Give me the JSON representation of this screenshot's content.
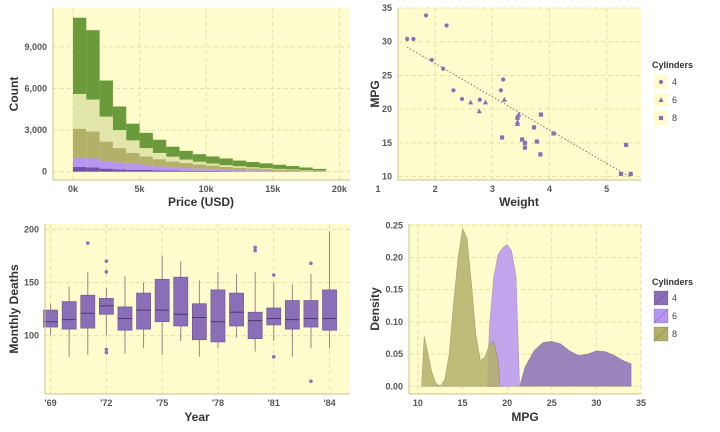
{
  "colors": {
    "panel_bg": "#fefccd",
    "grid": "#e6dfa6",
    "axis": "#c8c38a",
    "purple": "#8a6fb8",
    "purple_edge": "#6a5394",
    "green_dark": "#6a9a3a",
    "green_light": "#e3e6ab",
    "olive": "#b3b06a",
    "violet": "#b795f2",
    "indigo": "#7050a8"
  },
  "chart_data": [
    {
      "type": "histogram",
      "xlabel": "Price (USD)",
      "ylabel": "Count",
      "xlim": [
        -1500,
        20800
      ],
      "ylim": [
        -600,
        11800
      ],
      "xticks": [
        0,
        5000,
        10000,
        15000,
        20000
      ],
      "xtick_labels": [
        "0k",
        "5k",
        "10k",
        "15k",
        "20k"
      ],
      "yticks": [
        0,
        3000,
        6000,
        9000
      ],
      "ytick_labels": [
        "0",
        "3,000",
        "6,000",
        "9,000"
      ],
      "bin_width": 1000,
      "bin_starts": [
        0,
        1000,
        2000,
        3000,
        4000,
        5000,
        6000,
        7000,
        8000,
        9000,
        10000,
        11000,
        12000,
        13000,
        14000,
        15000,
        16000,
        17000,
        18000
      ],
      "series": [
        {
          "name": "layer1",
          "color": "#7050a8",
          "values": [
            350,
            300,
            220,
            170,
            140,
            120,
            100,
            80,
            70,
            60,
            50,
            40,
            30,
            20,
            20,
            10,
            10,
            5,
            5
          ]
        },
        {
          "name": "layer2",
          "color": "#b795f2",
          "values": [
            650,
            650,
            550,
            480,
            420,
            330,
            280,
            230,
            190,
            160,
            130,
            110,
            90,
            80,
            60,
            50,
            40,
            25,
            15
          ]
        },
        {
          "name": "layer3",
          "color": "#b3b06a",
          "values": [
            2100,
            1950,
            1400,
            1050,
            800,
            650,
            520,
            420,
            360,
            300,
            260,
            200,
            170,
            140,
            110,
            90,
            70,
            50,
            30
          ]
        },
        {
          "name": "layer4",
          "color": "#e3e6ab",
          "values": [
            2500,
            2300,
            1800,
            1300,
            900,
            600,
            450,
            350,
            250,
            200,
            150,
            120,
            100,
            80,
            60,
            50,
            40,
            30,
            20
          ]
        },
        {
          "name": "layer5",
          "color": "#6a9a3a",
          "values": [
            5500,
            5000,
            2600,
            1700,
            1200,
            1100,
            950,
            720,
            630,
            540,
            510,
            480,
            410,
            380,
            350,
            300,
            250,
            190,
            130
          ]
        }
      ]
    },
    {
      "type": "scatter",
      "xlabel": "Weight",
      "ylabel": "MPG",
      "xlim": [
        1.35,
        5.6
      ],
      "ylim": [
        9.5,
        35
      ],
      "xticks": [
        1,
        2,
        3,
        4,
        5
      ],
      "xtick_labels": [
        "1",
        "2",
        "3",
        "4",
        "5"
      ],
      "yticks": [
        10,
        15,
        20,
        25,
        30,
        35
      ],
      "ytick_labels": [
        "10",
        "15",
        "20",
        "25",
        "30",
        "35"
      ],
      "legend_title": "Cylinders",
      "legend_labels": [
        "4",
        "6",
        "8"
      ],
      "points": [
        {
          "x": 1.51,
          "y": 30.4,
          "cyl": 4
        },
        {
          "x": 1.62,
          "y": 30.4,
          "cyl": 4
        },
        {
          "x": 1.84,
          "y": 33.9,
          "cyl": 4
        },
        {
          "x": 1.94,
          "y": 27.3,
          "cyl": 4
        },
        {
          "x": 2.14,
          "y": 26.0,
          "cyl": 4
        },
        {
          "x": 2.2,
          "y": 32.4,
          "cyl": 4
        },
        {
          "x": 2.32,
          "y": 22.8,
          "cyl": 4
        },
        {
          "x": 2.47,
          "y": 21.5,
          "cyl": 4
        },
        {
          "x": 3.15,
          "y": 22.8,
          "cyl": 4
        },
        {
          "x": 3.19,
          "y": 24.4,
          "cyl": 4
        },
        {
          "x": 2.78,
          "y": 21.4,
          "cyl": 4
        },
        {
          "x": 2.62,
          "y": 21.0,
          "cyl": 6
        },
        {
          "x": 2.77,
          "y": 19.7,
          "cyl": 6
        },
        {
          "x": 2.88,
          "y": 21.0,
          "cyl": 6
        },
        {
          "x": 3.21,
          "y": 21.4,
          "cyl": 6
        },
        {
          "x": 3.44,
          "y": 17.8,
          "cyl": 6
        },
        {
          "x": 3.44,
          "y": 18.1,
          "cyl": 6
        },
        {
          "x": 3.46,
          "y": 19.2,
          "cyl": 6
        },
        {
          "x": 3.17,
          "y": 15.8,
          "cyl": 8
        },
        {
          "x": 3.44,
          "y": 18.7,
          "cyl": 8
        },
        {
          "x": 3.52,
          "y": 15.5,
          "cyl": 8
        },
        {
          "x": 3.57,
          "y": 14.3,
          "cyl": 8
        },
        {
          "x": 3.57,
          "y": 15.0,
          "cyl": 8
        },
        {
          "x": 3.73,
          "y": 17.3,
          "cyl": 8
        },
        {
          "x": 3.78,
          "y": 15.2,
          "cyl": 8
        },
        {
          "x": 3.84,
          "y": 13.3,
          "cyl": 8
        },
        {
          "x": 3.85,
          "y": 19.2,
          "cyl": 8
        },
        {
          "x": 4.07,
          "y": 16.4,
          "cyl": 8
        },
        {
          "x": 5.25,
          "y": 10.4,
          "cyl": 8
        },
        {
          "x": 5.34,
          "y": 14.7,
          "cyl": 8
        },
        {
          "x": 5.42,
          "y": 10.4,
          "cyl": 8
        }
      ],
      "trend_line": {
        "x": [
          1.51,
          5.42
        ],
        "y": [
          29.2,
          9.9
        ]
      }
    },
    {
      "type": "box",
      "xlabel": "Year",
      "ylabel": "Monthly Deaths",
      "xlim": [
        1968.7,
        1985.1
      ],
      "ylim": [
        45,
        205
      ],
      "xticks": [
        1969,
        1972,
        1975,
        1978,
        1981,
        1984
      ],
      "xtick_labels": [
        "'69",
        "'72",
        "'75",
        "'78",
        "'81",
        "'84"
      ],
      "yticks": [
        100,
        150,
        200
      ],
      "ytick_labels": [
        "100",
        "150",
        "200"
      ],
      "boxes": [
        {
          "year": 1969,
          "low": 100,
          "q1": 108,
          "median": 113,
          "q3": 124,
          "high": 130,
          "outliers": []
        },
        {
          "year": 1970,
          "low": 80,
          "q1": 106,
          "median": 115,
          "q3": 132,
          "high": 146,
          "outliers": []
        },
        {
          "year": 1971,
          "low": 82,
          "q1": 107,
          "median": 121,
          "q3": 138,
          "high": 160,
          "outliers": [
            187
          ]
        },
        {
          "year": 1972,
          "low": 100,
          "q1": 120,
          "median": 128,
          "q3": 135,
          "high": 145,
          "outliers": [
            84,
            87,
            160,
            170
          ]
        },
        {
          "year": 1973,
          "low": 83,
          "q1": 105,
          "median": 116,
          "q3": 127,
          "high": 156,
          "outliers": []
        },
        {
          "year": 1974,
          "low": 88,
          "q1": 106,
          "median": 124,
          "q3": 140,
          "high": 150,
          "outliers": []
        },
        {
          "year": 1975,
          "low": 82,
          "q1": 113,
          "median": 124,
          "q3": 153,
          "high": 175,
          "outliers": []
        },
        {
          "year": 1976,
          "low": 95,
          "q1": 109,
          "median": 120,
          "q3": 155,
          "high": 170,
          "outliers": []
        },
        {
          "year": 1977,
          "low": 80,
          "q1": 96,
          "median": 117,
          "q3": 130,
          "high": 152,
          "outliers": []
        },
        {
          "year": 1978,
          "low": 88,
          "q1": 94,
          "median": 113,
          "q3": 143,
          "high": 160,
          "outliers": []
        },
        {
          "year": 1979,
          "low": 98,
          "q1": 109,
          "median": 122,
          "q3": 140,
          "high": 158,
          "outliers": []
        },
        {
          "year": 1980,
          "low": 85,
          "q1": 97,
          "median": 114,
          "q3": 122,
          "high": 160,
          "outliers": [
            180,
            183
          ]
        },
        {
          "year": 1981,
          "low": 95,
          "q1": 110,
          "median": 116,
          "q3": 126,
          "high": 150,
          "outliers": [
            80,
            157
          ]
        },
        {
          "year": 1982,
          "low": 80,
          "q1": 106,
          "median": 115,
          "q3": 133,
          "high": 148,
          "outliers": []
        },
        {
          "year": 1983,
          "low": 88,
          "q1": 108,
          "median": 116,
          "q3": 133,
          "high": 158,
          "outliers": [
            57,
            168
          ]
        },
        {
          "year": 1984,
          "low": 88,
          "q1": 105,
          "median": 116,
          "q3": 143,
          "high": 198,
          "outliers": []
        }
      ]
    },
    {
      "type": "area",
      "xlabel": "MPG",
      "ylabel": "Density",
      "xlim": [
        9,
        35
      ],
      "ylim": [
        -0.012,
        0.252
      ],
      "xticks": [
        10,
        15,
        20,
        25,
        30,
        35
      ],
      "xtick_labels": [
        "10",
        "15",
        "20",
        "25",
        "30",
        "35"
      ],
      "yticks": [
        0.0,
        0.05,
        0.1,
        0.15,
        0.2,
        0.25
      ],
      "ytick_labels": [
        "0.00",
        "0.05",
        "0.10",
        "0.15",
        "0.20",
        "0.25"
      ],
      "legend_title": "Cylinders",
      "legend_labels": [
        "4",
        "6",
        "8"
      ],
      "series": [
        {
          "name": "4",
          "color": "#8a6fb8",
          "x": [
            21.4,
            22.0,
            23.0,
            24.0,
            25.0,
            26.0,
            27.0,
            28.0,
            29.0,
            30.0,
            31.0,
            32.0,
            33.0,
            33.9
          ],
          "y": [
            0.0,
            0.03,
            0.055,
            0.068,
            0.07,
            0.066,
            0.055,
            0.048,
            0.05,
            0.055,
            0.054,
            0.048,
            0.04,
            0.035
          ]
        },
        {
          "name": "6",
          "color": "#b795f2",
          "x": [
            17.8,
            18.0,
            18.5,
            19.0,
            19.5,
            20.0,
            20.5,
            21.0,
            21.4
          ],
          "y": [
            0.0,
            0.09,
            0.17,
            0.205,
            0.215,
            0.22,
            0.21,
            0.17,
            0.0
          ]
        },
        {
          "name": "8",
          "color": "#b3b06a",
          "x": [
            10.4,
            10.7,
            11.0,
            11.5,
            12.0,
            12.5,
            13.0,
            13.5,
            14.0,
            14.5,
            15.0,
            15.5,
            16.0,
            16.5,
            17.0,
            17.5,
            18.0,
            18.5,
            19.0,
            19.2
          ],
          "y": [
            0.0,
            0.078,
            0.06,
            0.025,
            0.005,
            0.0,
            0.01,
            0.05,
            0.13,
            0.2,
            0.245,
            0.23,
            0.16,
            0.08,
            0.04,
            0.045,
            0.065,
            0.07,
            0.04,
            0.0
          ]
        }
      ]
    }
  ]
}
